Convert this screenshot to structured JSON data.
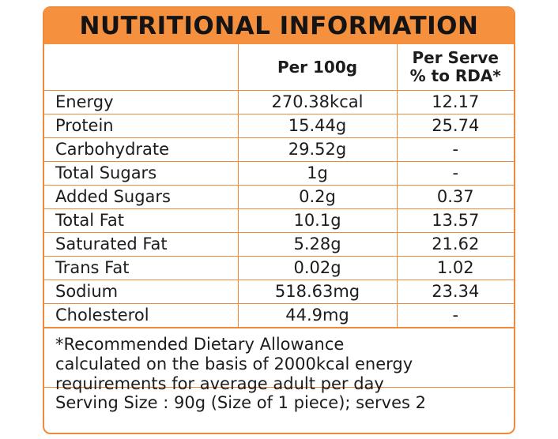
{
  "title": "NUTRITIONAL INFORMATION",
  "headers": [
    "",
    "Per 100g",
    "Per Serve\n% to RDA*"
  ],
  "headers_lines": {
    "col2": "Per 100g",
    "col3_line1": "Per Serve",
    "col3_line2": "% to RDA*"
  },
  "rows": [
    {
      "name": "Energy",
      "per100g": "270.38kcal",
      "rda": "12.17"
    },
    {
      "name": "Protein",
      "per100g": "15.44g",
      "rda": "25.74"
    },
    {
      "name": "Carbohydrate",
      "per100g": "29.52g",
      "rda": "-"
    },
    {
      "name": "Total Sugars",
      "per100g": "1g",
      "rda": "-"
    },
    {
      "name": "Added Sugars",
      "per100g": "0.2g",
      "rda": "0.37"
    },
    {
      "name": "Total Fat",
      "per100g": "10.1g",
      "rda": "13.57"
    },
    {
      "name": "Saturated Fat",
      "per100g": "5.28g",
      "rda": "21.62"
    },
    {
      "name": "Trans Fat",
      "per100g": "0.02g",
      "rda": "1.02"
    },
    {
      "name": "Sodium",
      "per100g": "518.63mg",
      "rda": "23.34"
    },
    {
      "name": "Cholesterol",
      "per100g": "44.9mg",
      "rda": "-"
    }
  ],
  "footnote_lines": [
    "*Recommended Dietary Allowance",
    "calculated on the basis of 2000kcal energy",
    "requirements for average adult per day"
  ],
  "serving": "Serving Size : 90g (Size of 1 piece); serves 2",
  "colors": {
    "accent": "#f5913e",
    "border": "#f08a3a",
    "text": "#1c1c1c"
  }
}
